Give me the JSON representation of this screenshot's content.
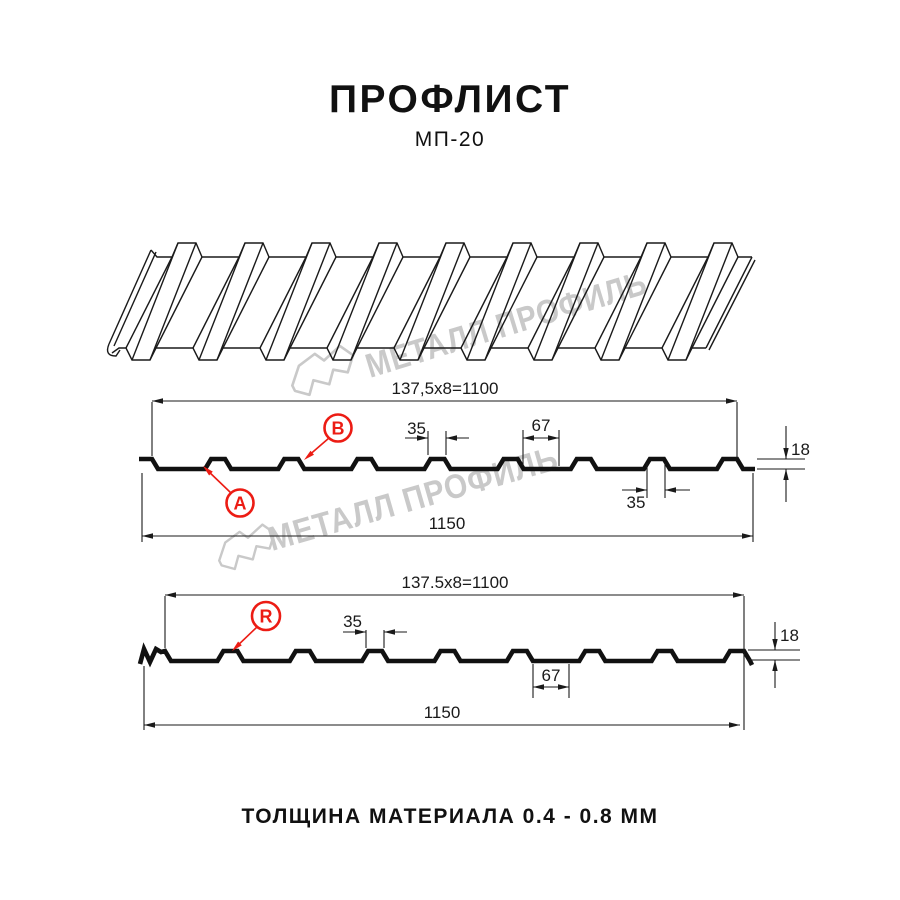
{
  "header": {
    "title": "ПРОФЛИСТ",
    "subtitle": "МП-20"
  },
  "footer": {
    "thickness_note": "ТОЛЩИНА МАТЕРИАЛА 0.4 - 0.8 ММ"
  },
  "watermark": {
    "text": "МЕТАЛЛ ПРОФИЛЬ",
    "color": "#c9c9c9"
  },
  "colors": {
    "line": "#1a1a1a",
    "accent_red": "#ec1c14"
  },
  "diagram1": {
    "module_dim": "137,5x8=1100",
    "overall_width": "1150",
    "rib_top_width": "35",
    "rib_bottom_width": "35",
    "flange_width": "67",
    "profile_height": "18",
    "labels": {
      "a": "A",
      "b": "B"
    }
  },
  "diagram2": {
    "module_dim": "137.5x8=1100",
    "overall_width": "1150",
    "rib_top_width": "35",
    "flange_width": "67",
    "profile_height": "18",
    "labels": {
      "r": "R"
    }
  }
}
